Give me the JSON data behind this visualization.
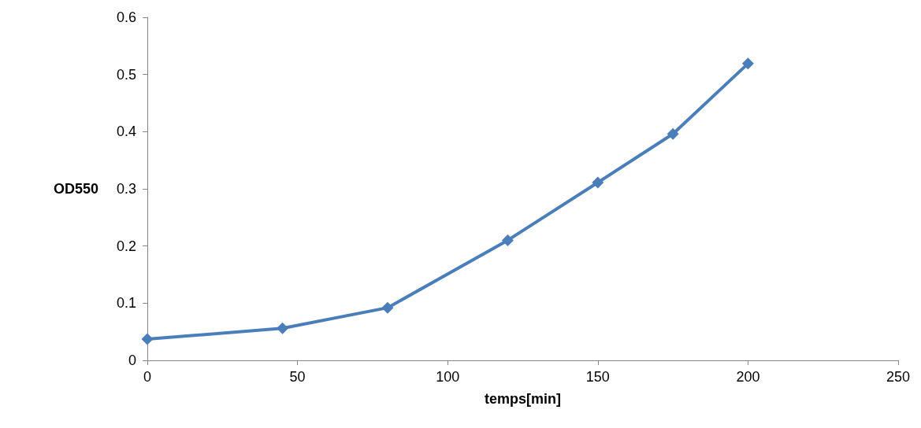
{
  "chart_data": {
    "type": "line",
    "xlabel": "temps[min]",
    "ylabel": "OD550",
    "x": [
      0,
      45,
      80,
      120,
      150,
      175,
      200
    ],
    "series": [
      {
        "color": "#4a7ebb",
        "values": [
          0.037,
          0.056,
          0.092,
          0.21,
          0.311,
          0.396,
          0.519
        ]
      }
    ],
    "xlim": [
      0,
      250
    ],
    "xticks": [
      0,
      50,
      100,
      150,
      200,
      250
    ],
    "ylim": [
      0,
      0.6
    ],
    "yticks": [
      0,
      0.1,
      0.2,
      0.3,
      0.4,
      0.5,
      0.6
    ],
    "grid": false,
    "marker": "diamond",
    "line_style": "solid"
  }
}
